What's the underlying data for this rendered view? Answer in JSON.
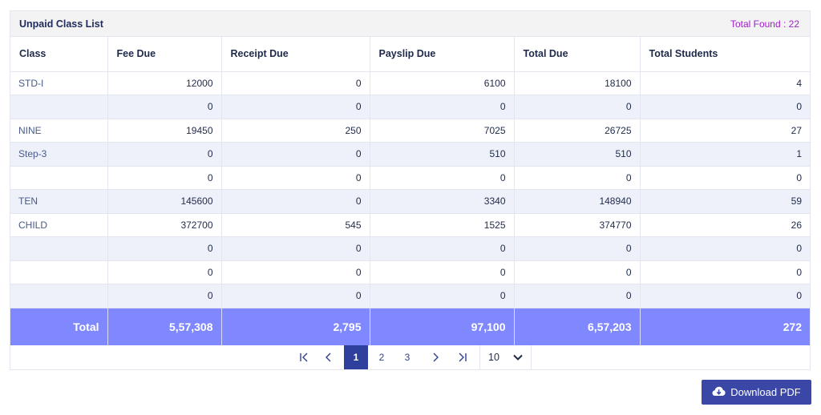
{
  "header": {
    "title": "Unpaid Class List",
    "total_found": "Total Found : 22"
  },
  "table": {
    "columns": [
      "Class",
      "Fee Due",
      "Receipt Due",
      "Payslip Due",
      "Total Due",
      "Total Students"
    ],
    "rows": [
      [
        "STD-I",
        "12000",
        "0",
        "6100",
        "18100",
        "4"
      ],
      [
        "",
        "0",
        "0",
        "0",
        "0",
        "0"
      ],
      [
        "NINE",
        "19450",
        "250",
        "7025",
        "26725",
        "27"
      ],
      [
        "Step-3",
        "0",
        "0",
        "510",
        "510",
        "1"
      ],
      [
        "",
        "0",
        "0",
        "0",
        "0",
        "0"
      ],
      [
        "TEN",
        "145600",
        "0",
        "3340",
        "148940",
        "59"
      ],
      [
        "CHILD",
        "372700",
        "545",
        "1525",
        "374770",
        "26"
      ],
      [
        "",
        "0",
        "0",
        "0",
        "0",
        "0"
      ],
      [
        "",
        "0",
        "0",
        "0",
        "0",
        "0"
      ],
      [
        "",
        "0",
        "0",
        "0",
        "0",
        "0"
      ]
    ],
    "total": [
      "Total",
      "5,57,308",
      "2,795",
      "97,100",
      "6,57,203",
      "272"
    ]
  },
  "pagination": {
    "first_icon": "first-page-icon",
    "prev_icon": "prev-page-icon",
    "pages": [
      "1",
      "2",
      "3"
    ],
    "current": "1",
    "next_icon": "next-page-icon",
    "last_icon": "last-page-icon",
    "per_page": "10"
  },
  "download": {
    "label": "Download PDF",
    "icon": "cloud-download-icon"
  },
  "colors": {
    "total_row": "#8088ff",
    "active_page": "#2f3f9e",
    "button": "#3a47a6",
    "total_found": "#a020c8"
  }
}
